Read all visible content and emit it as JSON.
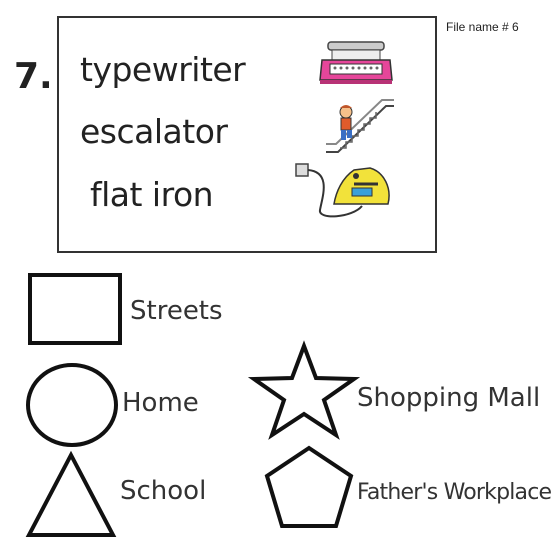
{
  "file_label": "File name # 6",
  "question_number": "7.",
  "items": [
    {
      "word": "typewriter",
      "icon": "typewriter-icon"
    },
    {
      "word": "escalator",
      "icon": "escalator-icon"
    },
    {
      "word": "flat iron",
      "icon": "flat-iron-icon"
    }
  ],
  "shapes": [
    {
      "shape": "square",
      "label": "Streets"
    },
    {
      "shape": "circle",
      "label": "Home"
    },
    {
      "shape": "triangle",
      "label": "School"
    },
    {
      "shape": "star",
      "label": "Shopping Mall"
    },
    {
      "shape": "pentagon",
      "label": "Father's Workplace"
    }
  ],
  "colors": {
    "typewriter": "#e6469a",
    "iron": "#f2e23a",
    "accent": "#222222"
  }
}
